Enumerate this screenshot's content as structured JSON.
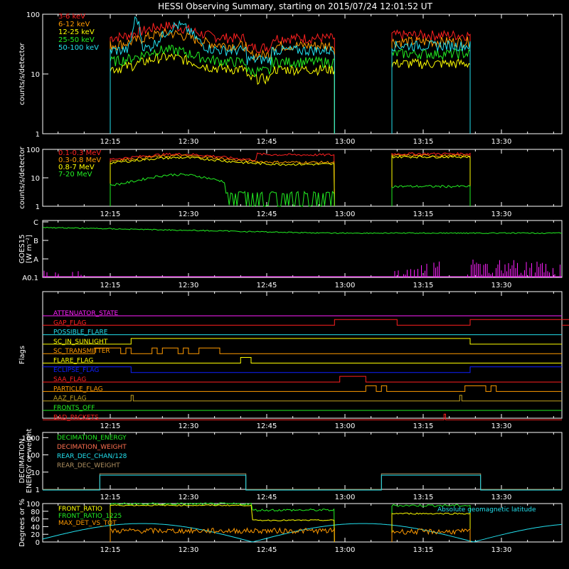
{
  "title": "HESSI Observing Summary, starting on 2015/07/24 12:01:52 UT",
  "colors": {
    "red": "#ff2020",
    "orange": "#ff9a00",
    "yellow": "#ffff00",
    "green": "#22ee22",
    "cyan": "#22e0ee",
    "magenta": "#ff20ff",
    "blue": "#1020ff",
    "olive": "#c0a020",
    "white": "#ffffff",
    "salmon": "#ff7050",
    "tan": "#b09060"
  },
  "time_ticks": [
    "12:15",
    "12:30",
    "12:45",
    "13:00",
    "13:15",
    "13:30"
  ],
  "chart_data": [
    {
      "type": "line",
      "name": "panel-counts-low",
      "ylabel": "counts/s/detector",
      "yscale": "log",
      "ylim": [
        1,
        100
      ],
      "yticks": [
        "1",
        "10",
        "100"
      ],
      "legend": [
        "3-6 keV",
        "6-12 keV",
        "12-25 keV",
        "25-50 keV",
        "50-100 keV"
      ],
      "series": [
        {
          "name": "3-6 keV",
          "color": "red",
          "level": [
            40,
            55,
            60,
            50,
            35,
            30,
            40,
            40,
            35
          ]
        },
        {
          "name": "6-12 keV",
          "color": "orange",
          "level": [
            30,
            40,
            45,
            40,
            28,
            25,
            30,
            30,
            28
          ]
        },
        {
          "name": "12-25 keV",
          "color": "yellow",
          "level": [
            12,
            18,
            20,
            14,
            9,
            8,
            12,
            12,
            11
          ]
        },
        {
          "name": "25-50 keV",
          "color": "green",
          "level": [
            16,
            25,
            28,
            20,
            12,
            12,
            16,
            18,
            16
          ]
        },
        {
          "name": "50-100 keV",
          "color": "cyan",
          "level": [
            25,
            35,
            90,
            45,
            25,
            25,
            28,
            35,
            30
          ]
        }
      ]
    },
    {
      "type": "line",
      "name": "panel-counts-high",
      "ylabel": "counts/s/detector",
      "yscale": "log",
      "ylim": [
        1,
        100
      ],
      "yticks": [
        "1",
        "10",
        "100"
      ],
      "legend": [
        "0.1-0.3 MeV",
        "0.3-0.8 MeV",
        "0.8-7 MeV",
        "7-20 MeV"
      ],
      "series": [
        {
          "name": "0.1-0.3 MeV",
          "color": "red"
        },
        {
          "name": "0.3-0.8 MeV",
          "color": "orange"
        },
        {
          "name": "0.8-7 MeV",
          "color": "yellow"
        },
        {
          "name": "7-20 MeV",
          "color": "green"
        }
      ]
    },
    {
      "type": "line",
      "name": "panel-goes",
      "ylabel": "GOES15",
      "ylabel2": "[W m⁻²]",
      "yticks": [
        "A0.1",
        "A",
        "B",
        "C"
      ]
    },
    {
      "type": "table",
      "name": "panel-flags",
      "ylabel": "Flags",
      "flags": [
        {
          "label": "ATTENUATOR_STATE",
          "color": "magenta"
        },
        {
          "label": "GAP_FLAG",
          "color": "red"
        },
        {
          "label": "POSSIBLE_FLARE",
          "color": "cyan"
        },
        {
          "label": "SC_IN_SUNLIGHT",
          "color": "yellow"
        },
        {
          "label": "SC_TRANSMITTER",
          "color": "orange"
        },
        {
          "label": "FLARE_FLAG",
          "color": "yellow"
        },
        {
          "label": "ECLIPSE_FLAG",
          "color": "blue"
        },
        {
          "label": "SAA_FLAG",
          "color": "red"
        },
        {
          "label": "PARTICLE_FLAG",
          "color": "orange"
        },
        {
          "label": "AAZ_FLAG",
          "color": "olive"
        },
        {
          "label": "FRONTS_OFF",
          "color": "green"
        },
        {
          "label": "BAD_PACKETS",
          "color": "red"
        }
      ]
    },
    {
      "type": "line",
      "name": "panel-decimation",
      "ylabel": "DECIMATION",
      "ylabel2": "ENERGY or weight",
      "yscale": "log",
      "yticks": [
        "1",
        "10",
        "100",
        "1000"
      ],
      "legend": [
        "DECIMATION_ENERGY",
        "DECIMATION_WEIGHT",
        "REAR_DEC_CHAN/128",
        "REAR_DEC_WEIGHT"
      ]
    },
    {
      "type": "line",
      "name": "panel-ratio",
      "ylabel": "Degrees or %",
      "ylim": [
        0,
        100
      ],
      "yticks": [
        "0",
        "20",
        "40",
        "60",
        "80",
        "100"
      ],
      "legend": [
        "FRONT_RATIO",
        "FRONT_RATIO_1225",
        "MAX_DET_VS_TOT"
      ],
      "legend_right": "Absolute geomagnetic latitude"
    }
  ]
}
